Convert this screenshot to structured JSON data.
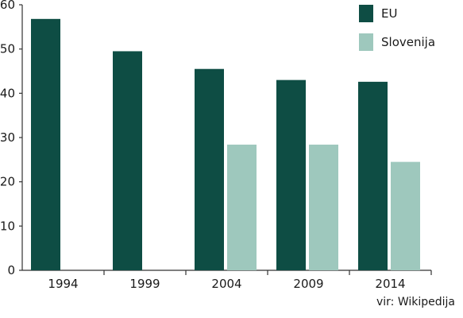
{
  "chart_data": {
    "type": "bar",
    "title": "",
    "xlabel": "",
    "ylabel": "",
    "categories": [
      "1994",
      "1999",
      "2004",
      "2009",
      "2014"
    ],
    "series": [
      {
        "name": "EU",
        "values": [
          56.8,
          49.5,
          45.5,
          43.0,
          42.6
        ],
        "color": "#0e4d44"
      },
      {
        "name": "Slovenija",
        "values": [
          null,
          null,
          28.4,
          28.4,
          24.5
        ],
        "color": "#9ec8bd"
      }
    ],
    "ylim": [
      0,
      60
    ],
    "yticks": [
      "0",
      "10",
      "20",
      "30",
      "40",
      "50",
      "60"
    ],
    "grid": false,
    "legend_position": "top-right",
    "source": "vir: Wikipedija"
  }
}
